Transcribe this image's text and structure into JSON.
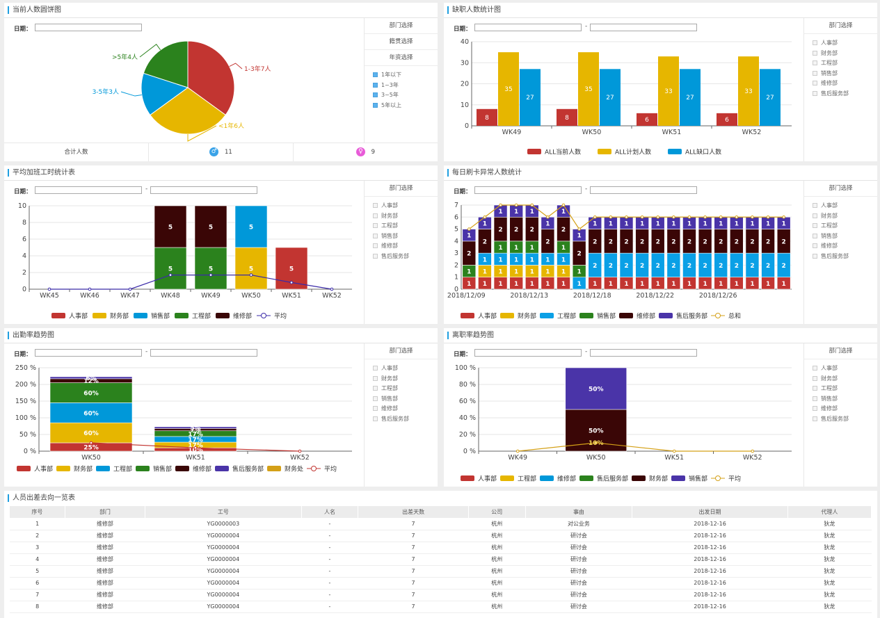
{
  "date_label": "日期：",
  "dept_select": "部门选择",
  "legend_avg": "平均",
  "legend_total": "总和",
  "depts": [
    "人事部",
    "财务部",
    "工程部",
    "销售部",
    "维修部",
    "售后服务部"
  ],
  "p1": {
    "title": "当前人数圆饼图",
    "side_items": [
      "部门选择",
      "籍贯选择",
      "年资选择"
    ],
    "checks": [
      "1年以下",
      "1~3年",
      "3~5年",
      "5年以上"
    ],
    "footer_label": "合计人数",
    "male_count": "11",
    "female_count": "9",
    "pie_labels": [
      "1-3年7人",
      "<1年6人",
      "3-5年3人",
      ">5年4人"
    ]
  },
  "p2": {
    "title": "缺职人数统计图",
    "legend": [
      "ALL当前人数",
      "ALL计划人数",
      "ALL缺口人数"
    ]
  },
  "p3": {
    "title": "平均加班工时统计表",
    "legend": [
      "人事部",
      "财务部",
      "销售部",
      "工程部",
      "维修部"
    ]
  },
  "p4": {
    "title": "每日刷卡异常人数统计",
    "legend": [
      "人事部",
      "财务部",
      "工程部",
      "销售部",
      "维修部",
      "售后服务部"
    ]
  },
  "p5": {
    "title": "出勤率趋势图",
    "legend": [
      "人事部",
      "财务部",
      "工程部",
      "销售部",
      "维修部",
      "售后服务部",
      "财务处"
    ]
  },
  "p6": {
    "title": "离职率趋势图",
    "legend": [
      "人事部",
      "工程部",
      "维修部",
      "售后服务部",
      "财务部",
      "销售部"
    ]
  },
  "table": {
    "title": "人员出差去向一览表",
    "headers": [
      "序号",
      "部门",
      "工号",
      "人名",
      "出差天数",
      "公司",
      "事由",
      "出发日期",
      "代理人"
    ],
    "rows": [
      [
        "1",
        "维修部",
        "YG0000003",
        "-",
        "7",
        "杭州",
        "对公业务",
        "2018-12-16",
        "狄龙"
      ],
      [
        "2",
        "维修部",
        "YG0000004",
        "-",
        "7",
        "杭州",
        "研讨会",
        "2018-12-16",
        "狄龙"
      ],
      [
        "3",
        "维修部",
        "YG0000004",
        "-",
        "7",
        "杭州",
        "研讨会",
        "2018-12-16",
        "狄龙"
      ],
      [
        "4",
        "维修部",
        "YG0000004",
        "-",
        "7",
        "杭州",
        "研讨会",
        "2018-12-16",
        "狄龙"
      ],
      [
        "5",
        "维修部",
        "YG0000004",
        "-",
        "7",
        "杭州",
        "研讨会",
        "2018-12-16",
        "狄龙"
      ],
      [
        "6",
        "维修部",
        "YG0000004",
        "-",
        "7",
        "杭州",
        "研讨会",
        "2018-12-16",
        "狄龙"
      ],
      [
        "7",
        "维修部",
        "YG0000004",
        "-",
        "7",
        "杭州",
        "研讨会",
        "2018-12-16",
        "狄龙"
      ],
      [
        "8",
        "维修部",
        "YG0000004",
        "-",
        "7",
        "杭州",
        "研讨会",
        "2018-12-16",
        "狄龙"
      ]
    ]
  },
  "colors": {
    "red": "#c23531",
    "yellow": "#e6b600",
    "blue": "#0098d9",
    "green": "#2b821d",
    "maroon": "#3a0606",
    "purple": "#4a34a8",
    "gold": "#d4a017",
    "accent": "#1f9fe0"
  },
  "chart_data": [
    {
      "type": "pie",
      "title": "当前人数圆饼图",
      "slices": [
        {
          "name": "1-3年",
          "value": 7
        },
        {
          "name": "<1年",
          "value": 6
        },
        {
          "name": "3-5年",
          "value": 3
        },
        {
          "name": ">5年",
          "value": 4
        }
      ]
    },
    {
      "type": "bar",
      "title": "缺职人数统计图",
      "categories": [
        "WK49",
        "WK50",
        "WK51",
        "WK52"
      ],
      "ylim": [
        0,
        40
      ],
      "series": [
        {
          "name": "ALL当前人数",
          "values": [
            8,
            8,
            6,
            6
          ]
        },
        {
          "name": "ALL计划人数",
          "values": [
            35,
            35,
            33,
            33
          ]
        },
        {
          "name": "ALL缺口人数",
          "values": [
            27,
            27,
            27,
            27
          ]
        }
      ]
    },
    {
      "type": "bar",
      "title": "平均加班工时统计表",
      "stacked": true,
      "categories": [
        "WK45",
        "WK46",
        "WK47",
        "WK48",
        "WK49",
        "WK50",
        "WK51",
        "WK52"
      ],
      "ylim": [
        0,
        10
      ],
      "series": [
        {
          "name": "人事部",
          "values": [
            0,
            0,
            0,
            0,
            0,
            0,
            5,
            0
          ]
        },
        {
          "name": "财务部",
          "values": [
            0,
            0,
            0,
            0,
            0,
            5,
            0,
            0
          ]
        },
        {
          "name": "销售部",
          "values": [
            0,
            0,
            0,
            0,
            0,
            5,
            0,
            0
          ]
        },
        {
          "name": "工程部",
          "values": [
            0,
            0,
            0,
            5,
            5,
            0,
            0,
            0
          ]
        },
        {
          "name": "维修部",
          "values": [
            0,
            0,
            0,
            5,
            5,
            0,
            0,
            0
          ]
        },
        {
          "name": "平均",
          "type": "line",
          "values": [
            0,
            0,
            0,
            1.7,
            1.7,
            1.7,
            0.8,
            0
          ]
        }
      ]
    },
    {
      "type": "bar",
      "title": "每日刷卡异常人数统计",
      "stacked": true,
      "x_ticks": [
        "2018/12/09",
        "2018/12/13",
        "2018/12/18",
        "2018/12/22",
        "2018/12/26"
      ],
      "ylim": [
        0,
        7
      ],
      "series": [
        {
          "name": "人事部",
          "values": [
            1,
            1,
            1,
            1,
            1,
            1,
            1,
            0,
            1,
            1,
            1,
            1,
            1,
            1,
            1,
            1,
            1,
            1,
            1,
            1,
            1
          ]
        },
        {
          "name": "财务部",
          "values": [
            0,
            1,
            1,
            1,
            1,
            1,
            1,
            0,
            0,
            0,
            0,
            0,
            0,
            0,
            0,
            0,
            0,
            0,
            0,
            0,
            0
          ]
        },
        {
          "name": "工程部",
          "values": [
            0,
            1,
            1,
            1,
            1,
            1,
            1,
            1,
            2,
            2,
            2,
            2,
            2,
            2,
            2,
            2,
            2,
            2,
            2,
            2,
            2
          ]
        },
        {
          "name": "销售部",
          "values": [
            1,
            0,
            1,
            1,
            1,
            0,
            1,
            1,
            0,
            0,
            0,
            0,
            0,
            0,
            0,
            0,
            0,
            0,
            0,
            0,
            0
          ]
        },
        {
          "name": "维修部",
          "values": [
            2,
            2,
            2,
            2,
            2,
            2,
            2,
            2,
            2,
            2,
            2,
            2,
            2,
            2,
            2,
            2,
            2,
            2,
            2,
            2,
            2
          ]
        },
        {
          "name": "售后服务部",
          "values": [
            1,
            1,
            1,
            1,
            1,
            1,
            1,
            1,
            1,
            1,
            1,
            1,
            1,
            1,
            1,
            1,
            1,
            1,
            1,
            1,
            1
          ]
        },
        {
          "name": "总和",
          "type": "line",
          "values": [
            5,
            6,
            7,
            7,
            7,
            6,
            7,
            5,
            6,
            6,
            6,
            6,
            6,
            6,
            6,
            6,
            6,
            6,
            6,
            6,
            6
          ]
        }
      ]
    },
    {
      "type": "bar",
      "title": "出勤率趋势图",
      "stacked": true,
      "categories": [
        "WK50",
        "WK51",
        "WK52"
      ],
      "ylim": [
        0,
        250
      ],
      "unit": "%",
      "series": [
        {
          "name": "人事部",
          "values": [
            25,
            10,
            0
          ]
        },
        {
          "name": "财务部",
          "values": [
            60,
            17,
            0
          ]
        },
        {
          "name": "工程部",
          "values": [
            60,
            17,
            0
          ]
        },
        {
          "name": "销售部",
          "values": [
            60,
            17,
            0
          ]
        },
        {
          "name": "维修部",
          "values": [
            12,
            7,
            0
          ]
        },
        {
          "name": "售后服务部",
          "values": [
            6,
            5,
            0
          ]
        },
        {
          "name": "平均",
          "type": "line",
          "values": [
            25,
            10,
            0
          ]
        }
      ]
    },
    {
      "type": "bar",
      "title": "离职率趋势图",
      "stacked": true,
      "categories": [
        "WK49",
        "WK50",
        "WK51",
        "WK52"
      ],
      "ylim": [
        0,
        100
      ],
      "unit": "%",
      "series": [
        {
          "name": "财务部",
          "values": [
            0,
            50,
            0,
            0
          ]
        },
        {
          "name": "销售部",
          "values": [
            0,
            50,
            0,
            0
          ]
        },
        {
          "name": "平均",
          "type": "line",
          "values": [
            0,
            10,
            0,
            0
          ]
        }
      ]
    }
  ]
}
